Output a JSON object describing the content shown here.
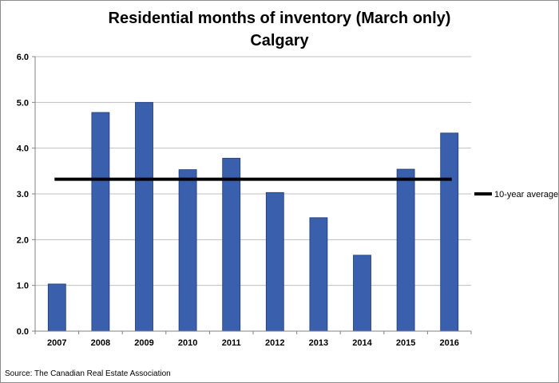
{
  "chart_data": {
    "type": "bar",
    "title": "Residential months of inventory (March only)",
    "subtitle": "Calgary",
    "categories": [
      "2007",
      "2008",
      "2009",
      "2010",
      "2011",
      "2012",
      "2013",
      "2014",
      "2015",
      "2016"
    ],
    "series": [
      {
        "values": [
          1.03,
          4.78,
          5.0,
          3.53,
          3.78,
          3.03,
          2.48,
          1.66,
          3.54,
          4.33
        ]
      }
    ],
    "reference_line": {
      "name": "10-year average",
      "value": 3.32
    },
    "ylim": [
      0,
      6
    ],
    "yticks": [
      "0.0",
      "1.0",
      "2.0",
      "3.0",
      "4.0",
      "5.0",
      "6.0"
    ],
    "ytick_values": [
      0,
      1,
      2,
      3,
      4,
      5,
      6
    ],
    "grid": true,
    "legend_position": "right",
    "source": "Source: The Canadian Real Estate Association",
    "colors": {
      "bar": "#3a5fac",
      "bar_edge": "#1f3a70",
      "average_line": "#000000",
      "grid": "#bfbfbf",
      "axis": "#808080"
    }
  }
}
